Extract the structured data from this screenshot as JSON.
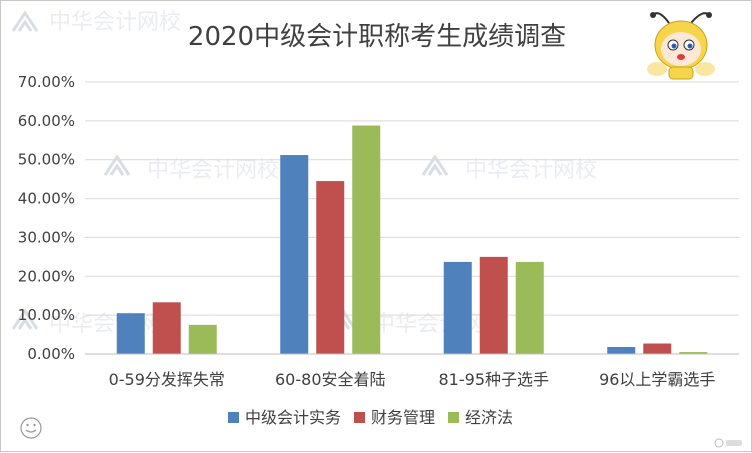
{
  "watermark": {
    "text": "中华会计网校"
  },
  "chart_data": {
    "type": "bar",
    "title": "2020中级会计职称考生成绩调查",
    "xlabel": "",
    "ylabel": "",
    "categories": [
      "0-59分发挥失常",
      "60-80安全着陆",
      "81-95种子选手",
      "96以上学霸选手"
    ],
    "series": [
      {
        "name": "中级会计实务",
        "values": [
          10.5,
          51.2,
          23.7,
          1.8
        ],
        "color": "#4f81bd"
      },
      {
        "name": "财务管理",
        "values": [
          13.3,
          44.5,
          25.0,
          2.7
        ],
        "color": "#c0504d"
      },
      {
        "name": "经济法",
        "values": [
          7.5,
          58.8,
          23.7,
          0.5
        ],
        "color": "#9bbb59"
      }
    ],
    "ylim": [
      0,
      70
    ],
    "yticks": [
      "0.00%",
      "10.00%",
      "20.00%",
      "30.00%",
      "40.00%",
      "50.00%",
      "60.00%",
      "70.00%"
    ],
    "grid": true,
    "legend": "bottom"
  }
}
